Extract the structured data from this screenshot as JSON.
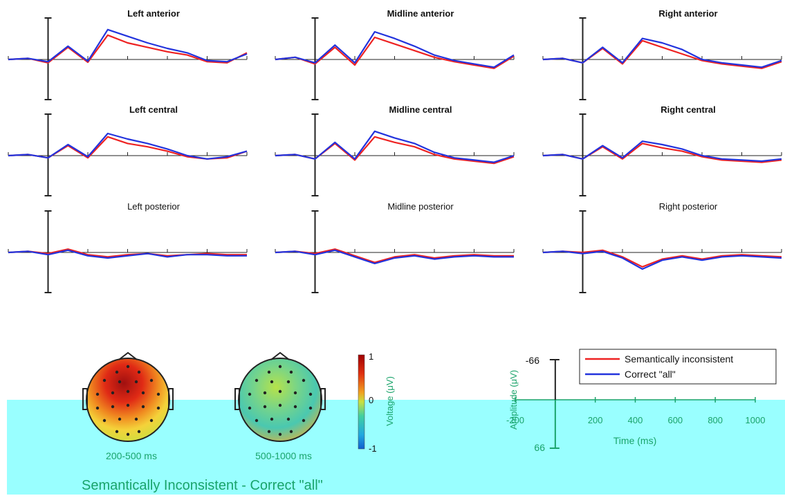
{
  "figure_title": "Semantically Inconsistent - Correct \"all\"",
  "colors": {
    "semantically_inconsistent": "#ee2222",
    "correct_all": "#2233dd",
    "axis_green": "#19a36a",
    "lower_band": "#99ffff"
  },
  "legend": {
    "entries": [
      {
        "label": "Semantically inconsistent",
        "color": "#ee2222"
      },
      {
        "label": "Correct \"all\"",
        "color": "#2233dd"
      }
    ]
  },
  "scale_key": {
    "ylabel": "Amplitude (μV)",
    "xlabel": "Time (ms)",
    "y_top_label": "-66",
    "y_bottom_label": "66",
    "xticks": [
      "-200",
      "200",
      "400",
      "600",
      "800",
      "1000"
    ]
  },
  "colorbar": {
    "label": "Voltage (μV)",
    "max_label": "1",
    "mid_label": "0",
    "min_label": "-1"
  },
  "topomaps": [
    {
      "label": "200-500 ms",
      "scheme": "warm"
    },
    {
      "label": "500-1000 ms",
      "scheme": "cool"
    }
  ],
  "chart_data": {
    "type": "line",
    "x": [
      -200,
      -100,
      0,
      100,
      200,
      300,
      400,
      500,
      600,
      700,
      800,
      900,
      1000
    ],
    "xlim": [
      -200,
      1000
    ],
    "xticks": [
      -200,
      0,
      200,
      400,
      600,
      800,
      1000
    ],
    "ylim": [
      66,
      -66
    ],
    "y_negative_up": true,
    "series_names": [
      "Semantically inconsistent",
      "Correct \"all\""
    ],
    "panels": [
      {
        "title": "Left anterior",
        "bold": true,
        "series": [
          {
            "name": "Semantically inconsistent",
            "values": [
              0,
              -2,
              6,
              -22,
              5,
              -44,
              -30,
              -22,
              -14,
              -8,
              4,
              6,
              -12
            ]
          },
          {
            "name": "Correct \"all\"",
            "values": [
              0,
              -2,
              4,
              -24,
              3,
              -54,
              -42,
              -30,
              -20,
              -12,
              2,
              4,
              -10
            ]
          }
        ]
      },
      {
        "title": "Midline anterior",
        "bold": true,
        "series": [
          {
            "name": "Semantically inconsistent",
            "values": [
              0,
              -4,
              8,
              -22,
              10,
              -40,
              -28,
              -16,
              -4,
              4,
              10,
              16,
              -6
            ]
          },
          {
            "name": "Correct \"all\"",
            "values": [
              0,
              -4,
              6,
              -26,
              6,
              -50,
              -38,
              -24,
              -8,
              2,
              8,
              14,
              -8
            ]
          }
        ]
      },
      {
        "title": "Right anterior",
        "bold": true,
        "series": [
          {
            "name": "Semantically inconsistent",
            "values": [
              0,
              -2,
              6,
              -20,
              8,
              -34,
              -22,
              -10,
              2,
              8,
              12,
              16,
              4
            ]
          },
          {
            "name": "Correct \"all\"",
            "values": [
              0,
              -2,
              6,
              -22,
              6,
              -38,
              -30,
              -18,
              0,
              6,
              10,
              14,
              2
            ]
          }
        ]
      },
      {
        "title": "Left central",
        "bold": true,
        "series": [
          {
            "name": "Semantically inconsistent",
            "values": [
              0,
              -2,
              4,
              -18,
              4,
              -34,
              -22,
              -16,
              -8,
              2,
              6,
              4,
              -8
            ]
          },
          {
            "name": "Correct \"all\"",
            "values": [
              0,
              -2,
              4,
              -20,
              2,
              -40,
              -30,
              -22,
              -12,
              0,
              6,
              2,
              -8
            ]
          }
        ]
      },
      {
        "title": "Midline central",
        "bold": true,
        "series": [
          {
            "name": "Semantically inconsistent",
            "values": [
              0,
              -2,
              6,
              -22,
              8,
              -34,
              -24,
              -16,
              -2,
              6,
              10,
              14,
              2
            ]
          },
          {
            "name": "Correct \"all\"",
            "values": [
              0,
              -2,
              6,
              -24,
              6,
              -44,
              -32,
              -22,
              -6,
              4,
              8,
              12,
              0
            ]
          }
        ]
      },
      {
        "title": "Right central",
        "bold": true,
        "series": [
          {
            "name": "Semantically inconsistent",
            "values": [
              0,
              -2,
              6,
              -16,
              6,
              -22,
              -14,
              -8,
              2,
              8,
              10,
              12,
              8
            ]
          },
          {
            "name": "Correct \"all\"",
            "values": [
              0,
              -2,
              6,
              -18,
              4,
              -26,
              -20,
              -12,
              0,
              6,
              8,
              10,
              6
            ]
          }
        ]
      },
      {
        "title": "Left posterior",
        "bold": false,
        "series": [
          {
            "name": "Semantically inconsistent",
            "values": [
              0,
              -2,
              2,
              -6,
              4,
              8,
              4,
              2,
              6,
              4,
              2,
              4,
              4
            ]
          },
          {
            "name": "Correct \"all\"",
            "values": [
              0,
              -2,
              4,
              -4,
              6,
              10,
              6,
              2,
              8,
              4,
              4,
              6,
              6
            ]
          }
        ]
      },
      {
        "title": "Midline posterior",
        "bold": false,
        "series": [
          {
            "name": "Semantically inconsistent",
            "values": [
              0,
              -2,
              2,
              -6,
              6,
              18,
              8,
              4,
              10,
              6,
              4,
              6,
              6
            ]
          },
          {
            "name": "Correct \"all\"",
            "values": [
              0,
              -2,
              4,
              -4,
              8,
              20,
              10,
              6,
              12,
              8,
              6,
              8,
              8
            ]
          }
        ]
      },
      {
        "title": "Right posterior",
        "bold": false,
        "series": [
          {
            "name": "Semantically inconsistent",
            "values": [
              0,
              -2,
              0,
              -4,
              8,
              26,
              12,
              6,
              12,
              6,
              4,
              6,
              8
            ]
          },
          {
            "name": "Correct \"all\"",
            "values": [
              0,
              -2,
              2,
              -2,
              10,
              30,
              14,
              8,
              14,
              8,
              6,
              8,
              10
            ]
          }
        ]
      }
    ]
  }
}
